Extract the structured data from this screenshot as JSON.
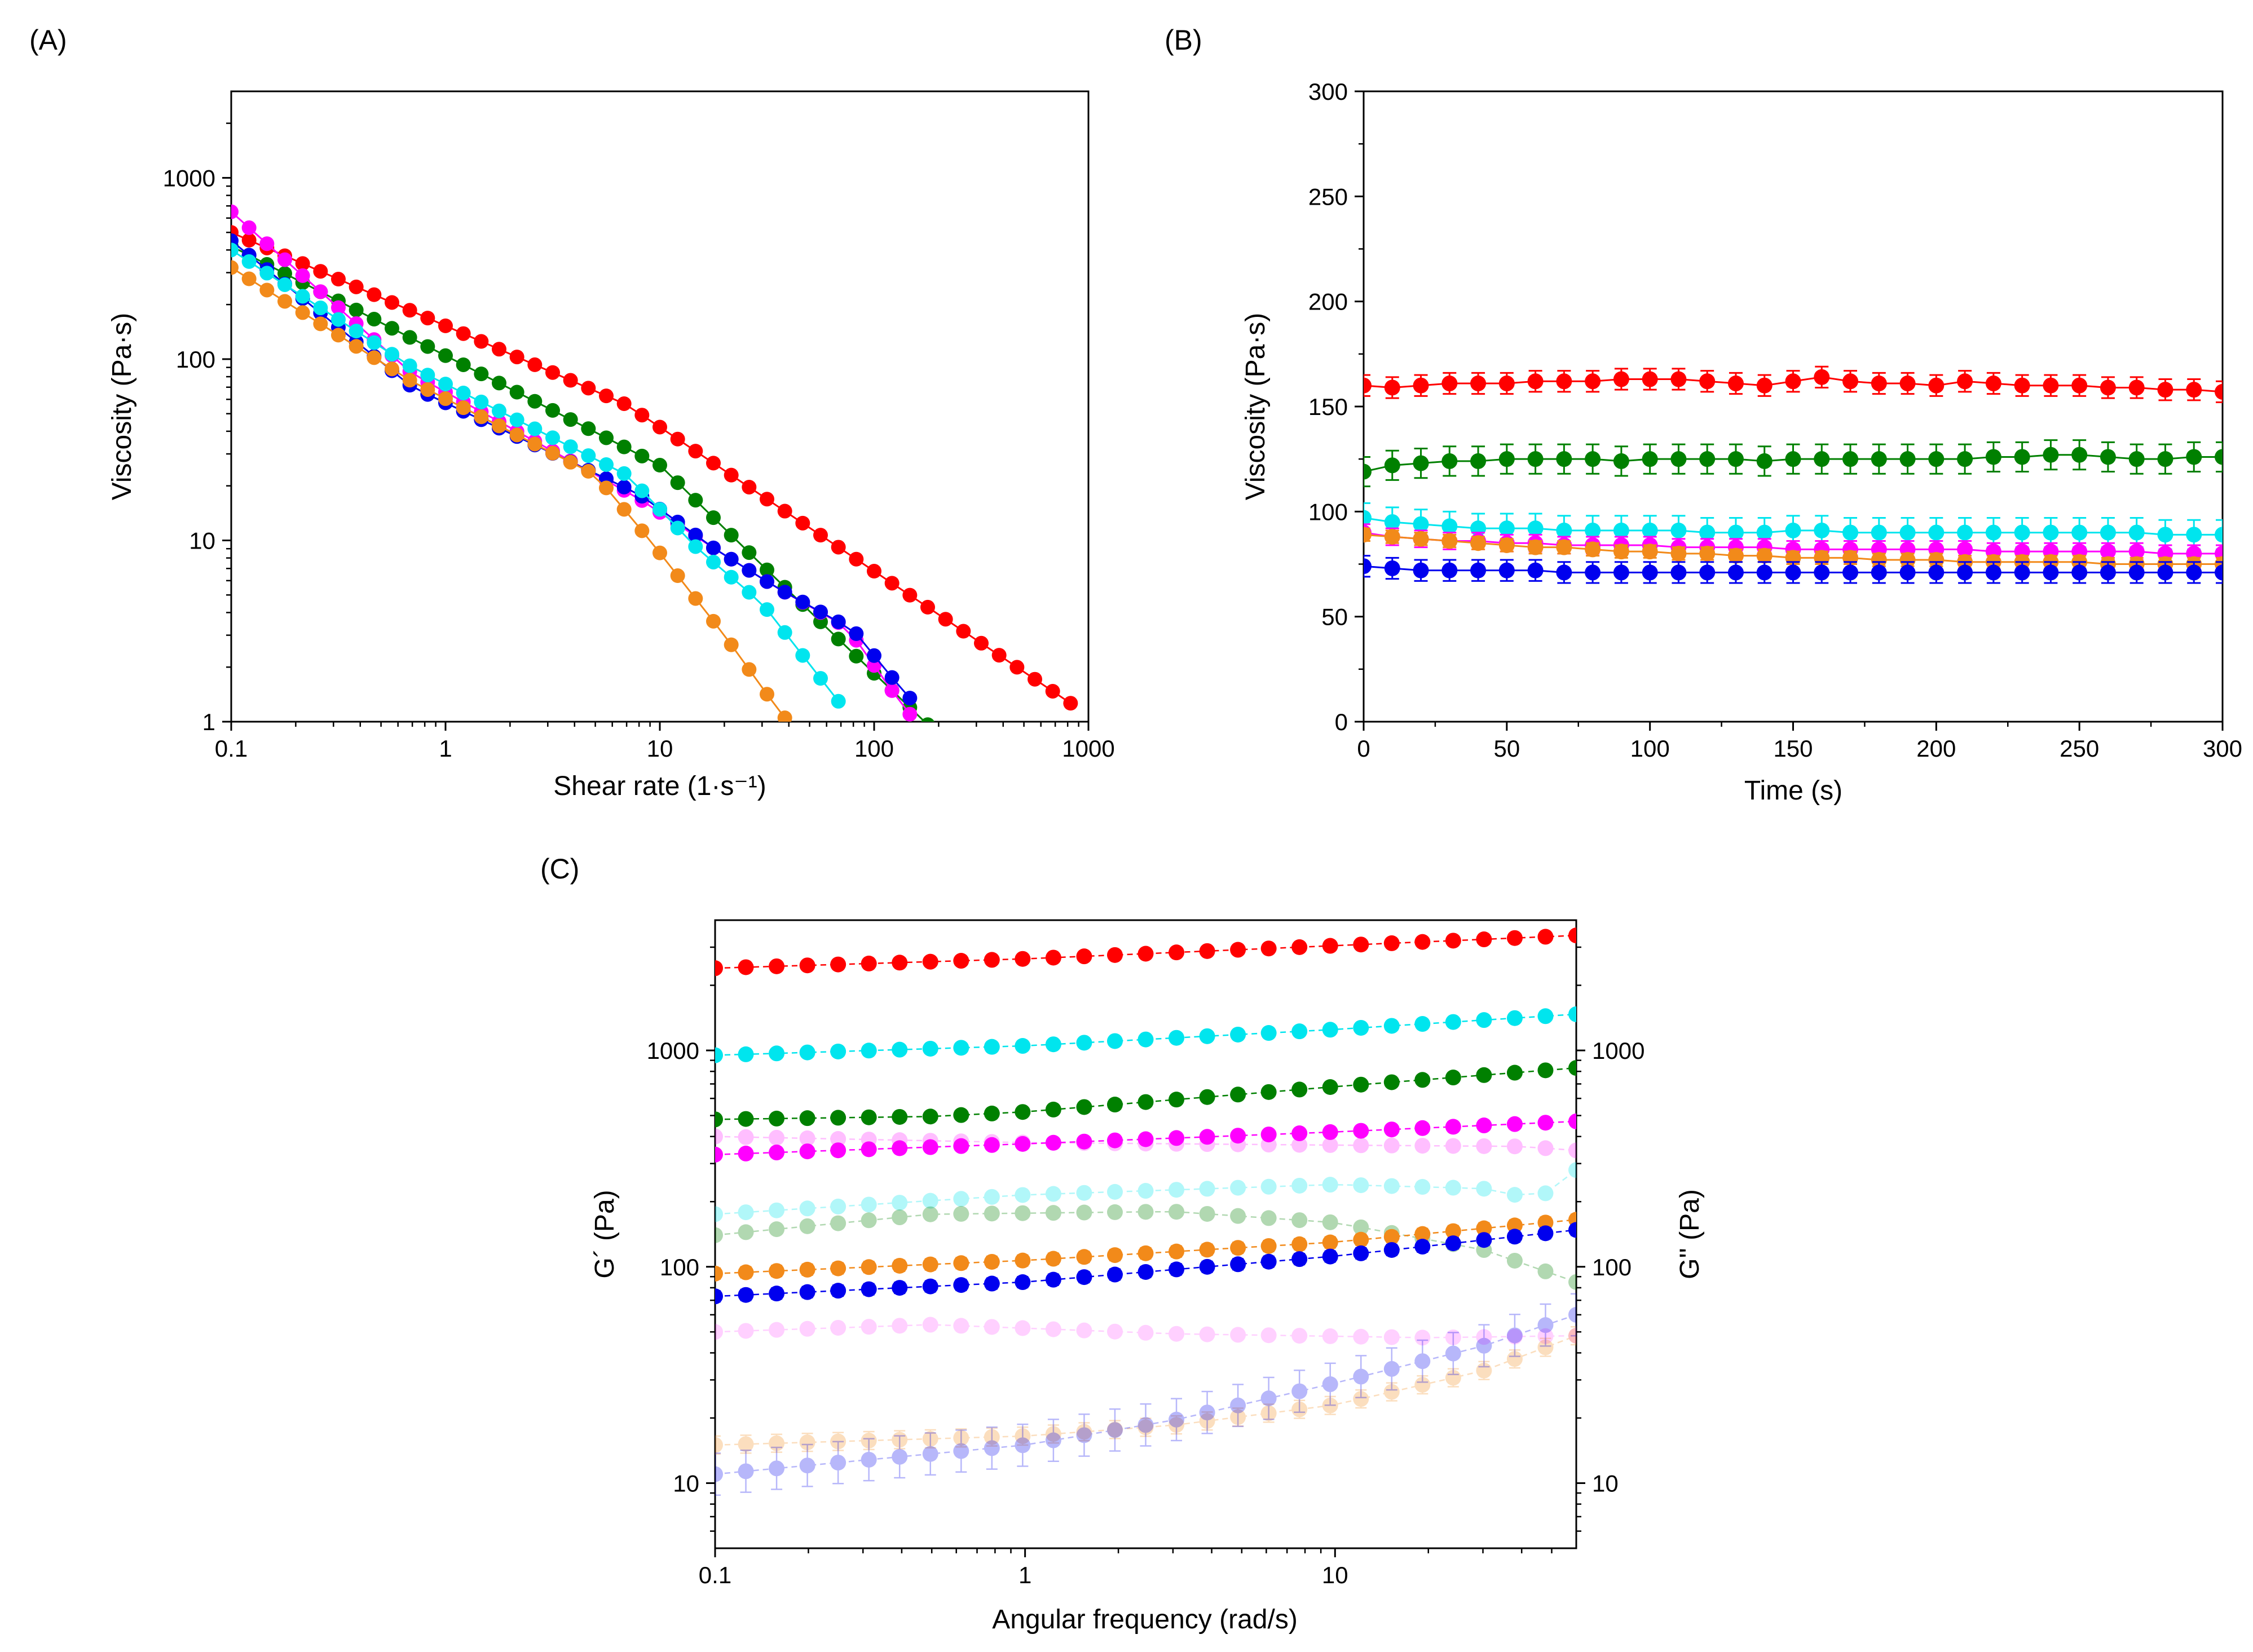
{
  "colors": {
    "red": "#ff0000",
    "green": "#008000",
    "cyan": "#00e5ee",
    "magenta": "#ff00ff",
    "blue": "#0000ee",
    "orange": "#f28a1a"
  },
  "chart_data": [
    {
      "id": "A",
      "panel_label": "(A)",
      "type": "line",
      "xscale": "log",
      "yscale": "log",
      "xlabel": "Shear rate (1·s⁻¹)",
      "ylabel": "Viscosity (Pa·s)",
      "xlim": [
        0.1,
        1000
      ],
      "ylim": [
        1,
        3000
      ],
      "xticks": [
        0.1,
        1,
        10,
        100,
        1000
      ],
      "xtick_labels": [
        "0.1",
        "1",
        "10",
        "100",
        "1000"
      ],
      "yticks": [
        1,
        10,
        100,
        1000
      ],
      "ytick_labels": [
        "1",
        "10",
        "100",
        "1000"
      ],
      "series": [
        {
          "name": "red",
          "color": "red",
          "breakpoints": [
            [
              0.1,
              500
            ],
            [
              7,
              56
            ],
            [
              900,
              1.18
            ]
          ]
        },
        {
          "name": "green",
          "color": "green",
          "breakpoints": [
            [
              0.1,
              420
            ],
            [
              10,
              26
            ],
            [
              25,
              9
            ],
            [
              60,
              3.3
            ],
            [
              180,
              0.95
            ]
          ]
        },
        {
          "name": "magenta",
          "color": "magenta",
          "breakpoints": [
            [
              0.1,
              650
            ],
            [
              0.7,
              83
            ],
            [
              8,
              17
            ],
            [
              18,
              9
            ],
            [
              35,
              5.5
            ],
            [
              75,
              3.3
            ],
            [
              145,
              1.1
            ]
          ]
        },
        {
          "name": "blue",
          "color": "blue",
          "breakpoints": [
            [
              0.1,
              450
            ],
            [
              0.7,
              70
            ],
            [
              8,
              18
            ],
            [
              18,
              9
            ],
            [
              35,
              5.5
            ],
            [
              80,
              3.2
            ],
            [
              145,
              1.35
            ]
          ]
        },
        {
          "name": "cyan",
          "color": "cyan",
          "breakpoints": [
            [
              0.1,
              400
            ],
            [
              0.7,
              90
            ],
            [
              7,
              23
            ],
            [
              15,
              9
            ],
            [
              30,
              4.5
            ],
            [
              75,
              1.12
            ]
          ]
        },
        {
          "name": "orange",
          "color": "orange",
          "breakpoints": [
            [
              0.1,
              320
            ],
            [
              0.7,
              75
            ],
            [
              5,
              23
            ],
            [
              9,
              10
            ],
            [
              20,
              3
            ],
            [
              38,
              1.05
            ]
          ]
        }
      ]
    },
    {
      "id": "B",
      "panel_label": "(B)",
      "type": "line",
      "xscale": "linear",
      "yscale": "linear",
      "xlabel": "Time (s)",
      "ylabel": "Viscosity (Pa·s)",
      "xlim": [
        0,
        300
      ],
      "ylim": [
        0,
        300
      ],
      "xticks": [
        0,
        50,
        100,
        150,
        200,
        250,
        300
      ],
      "xtick_labels": [
        "0",
        "50",
        "100",
        "150",
        "200",
        "250",
        "300"
      ],
      "yticks": [
        0,
        50,
        100,
        150,
        200,
        250,
        300
      ],
      "ytick_labels": [
        "0",
        "50",
        "100",
        "150",
        "200",
        "250",
        "300"
      ],
      "x": [
        0,
        10,
        20,
        30,
        40,
        50,
        60,
        70,
        80,
        90,
        100,
        110,
        120,
        130,
        140,
        150,
        160,
        170,
        180,
        190,
        200,
        210,
        220,
        230,
        240,
        250,
        260,
        270,
        280,
        290,
        300
      ],
      "series": [
        {
          "name": "red",
          "color": "red",
          "err": 5,
          "values": [
            160,
            159,
            160,
            161,
            161,
            161,
            162,
            162,
            162,
            163,
            163,
            163,
            162,
            161,
            160,
            162,
            164,
            162,
            161,
            161,
            160,
            162,
            161,
            160,
            160,
            160,
            159,
            159,
            158,
            158,
            157
          ]
        },
        {
          "name": "green",
          "color": "green",
          "err": 7,
          "values": [
            119,
            122,
            123,
            124,
            124,
            125,
            125,
            125,
            125,
            124,
            125,
            125,
            125,
            125,
            124,
            125,
            125,
            125,
            125,
            125,
            125,
            125,
            126,
            126,
            127,
            127,
            126,
            125,
            125,
            126,
            126
          ]
        },
        {
          "name": "cyan",
          "color": "cyan",
          "err": 7,
          "values": [
            97,
            95,
            94,
            93,
            92,
            92,
            92,
            91,
            91,
            91,
            91,
            91,
            90,
            90,
            90,
            91,
            91,
            90,
            90,
            90,
            90,
            90,
            90,
            90,
            90,
            90,
            90,
            90,
            89,
            89,
            89
          ]
        },
        {
          "name": "magenta",
          "color": "magenta",
          "err": 4,
          "values": [
            90,
            88,
            87,
            86,
            86,
            85,
            85,
            84,
            84,
            84,
            84,
            83,
            83,
            83,
            83,
            82,
            82,
            82,
            82,
            82,
            82,
            82,
            81,
            81,
            81,
            81,
            81,
            81,
            80,
            80,
            80
          ]
        },
        {
          "name": "orange",
          "color": "orange",
          "err": 3,
          "values": [
            89,
            88,
            87,
            86,
            85,
            84,
            83,
            83,
            82,
            81,
            81,
            80,
            80,
            79,
            79,
            78,
            78,
            78,
            77,
            77,
            77,
            76,
            76,
            76,
            76,
            76,
            75,
            75,
            75,
            75,
            75
          ]
        },
        {
          "name": "blue",
          "color": "blue",
          "err": 5,
          "values": [
            74,
            73,
            72,
            72,
            72,
            72,
            72,
            71,
            71,
            71,
            71,
            71,
            71,
            71,
            71,
            71,
            71,
            71,
            71,
            71,
            71,
            71,
            71,
            71,
            71,
            71,
            71,
            71,
            71,
            71,
            71
          ]
        }
      ]
    },
    {
      "id": "C",
      "panel_label": "(C)",
      "type": "scatter",
      "xscale": "log",
      "yscale": "log",
      "xlabel": "Angular frequency (rad/s)",
      "ylabel": "G´ (Pa)",
      "ylabel_right": "G'' (Pa)",
      "xlim": [
        0.1,
        60
      ],
      "ylim": [
        5,
        4000
      ],
      "xticks": [
        0.1,
        1,
        10
      ],
      "xtick_labels": [
        "0.1",
        "1",
        "10"
      ],
      "yticks": [
        10,
        100,
        1000
      ],
      "ytick_labels": [
        "10",
        "100",
        "1000"
      ],
      "yticks_right": [
        10,
        100,
        1000
      ],
      "ytick_labels_right": [
        "10",
        "100",
        "1000"
      ],
      "point_count": 29,
      "series": [
        {
          "name": "red G'",
          "modulus": "G'",
          "color": "red",
          "opacity": 1,
          "err": 0.02,
          "breakpoints": [
            [
              0.1,
              2400
            ],
            [
              1,
              2650
            ],
            [
              10,
              3050
            ],
            [
              60,
              3400
            ]
          ]
        },
        {
          "name": "cyan G'",
          "modulus": "G'",
          "color": "cyan",
          "opacity": 1,
          "err": 0.02,
          "breakpoints": [
            [
              0.1,
              950
            ],
            [
              1,
              1050
            ],
            [
              10,
              1250
            ],
            [
              60,
              1470
            ]
          ]
        },
        {
          "name": "green G'",
          "modulus": "G'",
          "color": "green",
          "opacity": 1,
          "err": 0.04,
          "breakpoints": [
            [
              0.1,
              480
            ],
            [
              0.5,
              495
            ],
            [
              1,
              520
            ],
            [
              10,
              680
            ],
            [
              60,
              830
            ]
          ]
        },
        {
          "name": "magenta G'",
          "modulus": "G'",
          "color": "magenta",
          "opacity": 1,
          "err": 0.04,
          "breakpoints": [
            [
              0.1,
              330
            ],
            [
              1,
              370
            ],
            [
              10,
              420
            ],
            [
              60,
              470
            ]
          ]
        },
        {
          "name": "orange G'",
          "modulus": "G'",
          "color": "orange",
          "opacity": 1,
          "err": 0.06,
          "breakpoints": [
            [
              0.1,
              93
            ],
            [
              1,
              107
            ],
            [
              10,
              130
            ],
            [
              60,
              165
            ]
          ]
        },
        {
          "name": "blue G'",
          "modulus": "G'",
          "color": "blue",
          "opacity": 1,
          "err": 0.06,
          "breakpoints": [
            [
              0.1,
              73
            ],
            [
              1,
              85
            ],
            [
              10,
              112
            ],
            [
              60,
              148
            ]
          ]
        },
        {
          "name": "magenta G''",
          "modulus": "G''",
          "color": "magenta",
          "opacity": 0.25,
          "err": 0.04,
          "breakpoints": [
            [
              0.1,
              400
            ],
            [
              1,
              375
            ],
            [
              10,
              365
            ],
            [
              40,
              360
            ],
            [
              60,
              345
            ]
          ]
        },
        {
          "name": "cyan G''",
          "modulus": "G''",
          "color": "cyan",
          "opacity": 0.3,
          "err": 0.05,
          "breakpoints": [
            [
              0.1,
              175
            ],
            [
              1,
              215
            ],
            [
              10,
              240
            ],
            [
              30,
              230
            ],
            [
              45,
              205
            ],
            [
              60,
              280
            ]
          ]
        },
        {
          "name": "green G''",
          "modulus": "G''",
          "color": "green",
          "opacity": 0.3,
          "err": 0.05,
          "breakpoints": [
            [
              0.1,
              140
            ],
            [
              0.5,
              175
            ],
            [
              3,
              180
            ],
            [
              10,
              160
            ],
            [
              30,
              120
            ],
            [
              60,
              85
            ]
          ]
        },
        {
          "name": "magenta G'' (lower)",
          "modulus": "G''",
          "color": "magenta",
          "opacity": 0.18,
          "err": 0.05,
          "breakpoints": [
            [
              0.1,
              50
            ],
            [
              0.5,
              54
            ],
            [
              3,
              49
            ],
            [
              20,
              47
            ],
            [
              60,
              48
            ]
          ]
        },
        {
          "name": "orange G''",
          "modulus": "G''",
          "color": "orange",
          "opacity": 0.28,
          "err": 0.1,
          "breakpoints": [
            [
              0.1,
              15
            ],
            [
              1,
              16.5
            ],
            [
              3,
              18.5
            ],
            [
              10,
              23
            ],
            [
              30,
              33
            ],
            [
              60,
              48
            ]
          ]
        },
        {
          "name": "blue G''",
          "modulus": "G''",
          "color": "blue",
          "opacity": 0.28,
          "err": 0.25,
          "breakpoints": [
            [
              0.1,
              11
            ],
            [
              1,
              15
            ],
            [
              3,
              19.5
            ],
            [
              10,
              29
            ],
            [
              30,
              43
            ],
            [
              60,
              60
            ]
          ]
        }
      ]
    }
  ]
}
